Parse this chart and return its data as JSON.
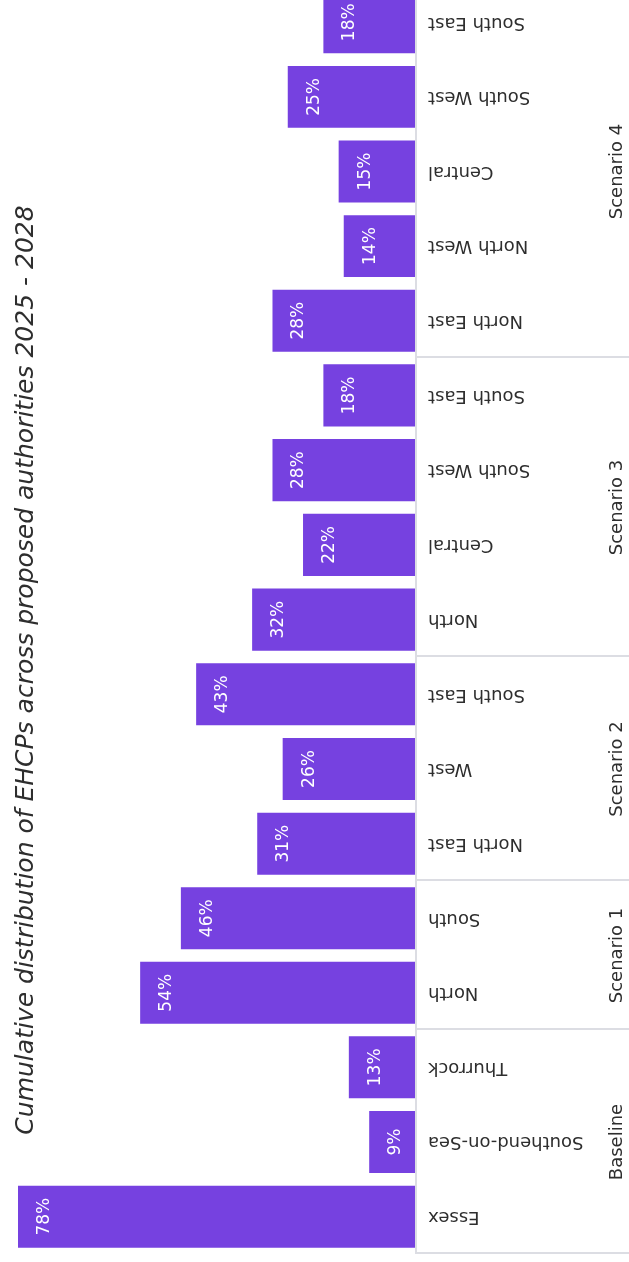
{
  "chart_data": [
    {
      "type": "other",
      "title": "Cumulative distribution of EHCPs across proposed authorities 2025 - 2028"
    },
    {
      "type": "bar",
      "ylabel": "Scenario 4",
      "orientation": "horizontal",
      "tick_labels": "y",
      "categories": [
        "South East",
        "South West",
        "Central",
        "North West",
        "North East"
      ],
      "values": [
        18,
        25,
        15,
        14,
        28
      ],
      "value_labels": [
        "18%",
        "25%",
        "15%",
        "14%",
        "28%"
      ],
      "color": "#7641e0"
    },
    {
      "type": "bar",
      "ylabel": "Scenario 3",
      "orientation": "horizontal",
      "tick_labels": "y",
      "categories": [
        "South East",
        "South West",
        "Central",
        "North"
      ],
      "values": [
        18,
        28,
        22,
        32
      ],
      "value_labels": [
        "18%",
        "28%",
        "22%",
        "32%"
      ],
      "color": "#7641e0"
    },
    {
      "type": "bar",
      "ylabel": "Scenario 2",
      "orientation": "horizontal",
      "tick_labels": "y",
      "categories": [
        "South East",
        "West",
        "North East"
      ],
      "values": [
        43,
        26,
        31
      ],
      "value_labels": [
        "43%",
        "26%",
        "31%"
      ],
      "color": "#7641e0"
    },
    {
      "type": "bar",
      "ylabel": "Scenario 1",
      "orientation": "horizontal",
      "tick_labels": "y",
      "categories": [
        "South",
        "North"
      ],
      "values": [
        46,
        54
      ],
      "value_labels": [
        "46%",
        "54%"
      ],
      "color": "#7641e0"
    },
    {
      "type": "bar",
      "ylabel": "Baseline",
      "orientation": "horizontal",
      "tick_labels": "y",
      "categories": [
        "Thurrock",
        "Southend-on-Sea",
        "Essex"
      ],
      "values": [
        13,
        9,
        78
      ],
      "value_labels": [
        "13%",
        "9%",
        "78%"
      ],
      "color": "#7641e0"
    }
  ]
}
